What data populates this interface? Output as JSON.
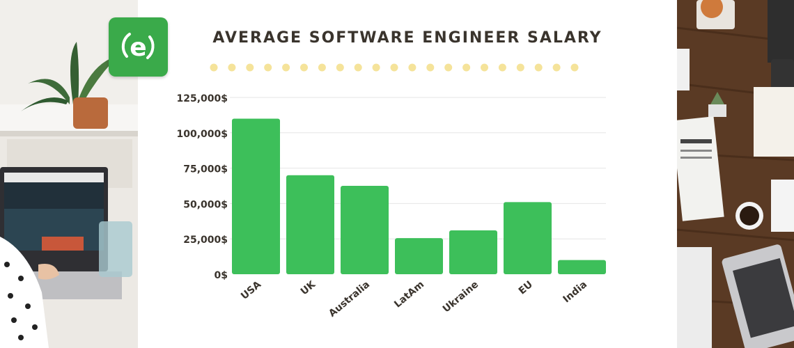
{
  "title": "AVERAGE SOFTWARE ENGINEER SALARY",
  "logo": {
    "letter": "e",
    "color": "#3aaa4a"
  },
  "colors": {
    "bar": "#3dbf5a",
    "dots": "#f5e39a",
    "text": "#3a342d",
    "grid": "#e6e6e6"
  },
  "chart_data": {
    "type": "bar",
    "title": "AVERAGE SOFTWARE ENGINEER SALARY",
    "categories": [
      "USA",
      "UK",
      "Australia",
      "LatAm",
      "Ukraine",
      "EU",
      "India"
    ],
    "values": [
      110000,
      70000,
      62500,
      25500,
      31000,
      51000,
      10000
    ],
    "ylim": [
      0,
      125000
    ],
    "yticks": [
      0,
      25000,
      50000,
      75000,
      100000,
      125000
    ],
    "ytick_labels": [
      "0$",
      "25,000$",
      "50,000$",
      "75,000$",
      "100,000$",
      "125,000$"
    ],
    "xlabel": "",
    "ylabel": "",
    "grid": true,
    "legend": "none"
  }
}
